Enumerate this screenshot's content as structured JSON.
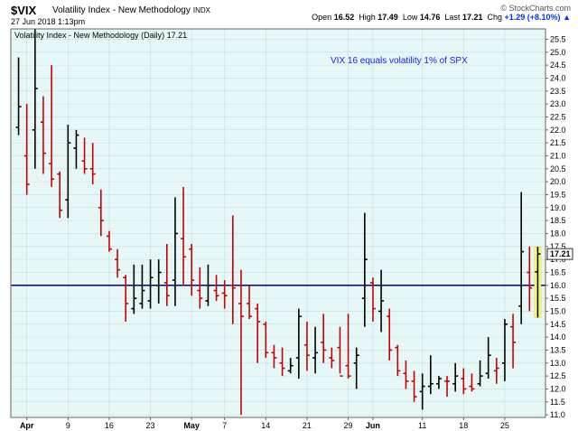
{
  "header": {
    "symbol": "$VIX",
    "name": "Volatility Index - New Methodology",
    "exchange": "INDX",
    "date": "27 Jun 2018 1:13pm",
    "copyright": "© StockCharts.com",
    "open_label": "Open",
    "open": "16.52",
    "high_label": "High",
    "high": "17.49",
    "low_label": "Low",
    "low": "14.76",
    "last_label": "Last",
    "last": "17.21",
    "chg_label": "Chg",
    "chg": "+1.29 (+8.10%)",
    "chg_arrow": "▲"
  },
  "colors": {
    "plot_bg": "#e6f7f7",
    "up": "#000000",
    "down": "#cc0000",
    "hline": "#000080",
    "highlight": "#ffff66",
    "annotation": "#1a1aff"
  },
  "chart_data": {
    "type": "ohlc",
    "legend": "Volatility Index - New Methodology (Daily) 17.21",
    "annotation": "VIX 16 equals volatility 1% of SPX",
    "last_label": "17.21",
    "hline": 16.0,
    "ylim": [
      10.9,
      25.9
    ],
    "y_ticks": [
      11.0,
      11.5,
      12.0,
      12.5,
      13.0,
      13.5,
      14.0,
      14.5,
      15.0,
      15.5,
      16.0,
      16.5,
      17.0,
      17.5,
      18.0,
      18.5,
      19.0,
      19.5,
      20.0,
      20.5,
      21.0,
      21.5,
      22.0,
      22.5,
      23.0,
      23.5,
      24.0,
      24.5,
      25.0,
      25.5
    ],
    "x_labels": [
      {
        "label": "Apr",
        "index": 1,
        "bold": true
      },
      {
        "label": "9",
        "index": 6,
        "bold": false
      },
      {
        "label": "16",
        "index": 11,
        "bold": false
      },
      {
        "label": "23",
        "index": 16,
        "bold": false
      },
      {
        "label": "May",
        "index": 21,
        "bold": true
      },
      {
        "label": "7",
        "index": 25,
        "bold": false
      },
      {
        "label": "14",
        "index": 30,
        "bold": false
      },
      {
        "label": "21",
        "index": 35,
        "bold": false
      },
      {
        "label": "29",
        "index": 40,
        "bold": false
      },
      {
        "label": "Jun",
        "index": 43,
        "bold": true
      },
      {
        "label": "11",
        "index": 49,
        "bold": false
      },
      {
        "label": "18",
        "index": 54,
        "bold": false
      },
      {
        "label": "25",
        "index": 59,
        "bold": false
      }
    ],
    "bars": [
      {
        "o": 22.1,
        "h": 24.8,
        "l": 21.8,
        "c": 22.9,
        "up": true
      },
      {
        "o": 21.0,
        "h": 23.0,
        "l": 19.5,
        "c": 19.9,
        "up": false
      },
      {
        "o": 22.0,
        "h": 25.9,
        "l": 20.5,
        "c": 23.6,
        "up": true
      },
      {
        "o": 22.3,
        "h": 23.3,
        "l": 20.3,
        "c": 21.1,
        "up": false
      },
      {
        "o": 20.7,
        "h": 24.5,
        "l": 19.8,
        "c": 20.1,
        "up": false
      },
      {
        "o": 20.3,
        "h": 20.4,
        "l": 18.6,
        "c": 18.9,
        "up": false
      },
      {
        "o": 19.3,
        "h": 22.2,
        "l": 18.6,
        "c": 21.5,
        "up": true
      },
      {
        "o": 21.3,
        "h": 22.0,
        "l": 20.5,
        "c": 21.8,
        "up": true
      },
      {
        "o": 20.8,
        "h": 21.7,
        "l": 20.3,
        "c": 20.5,
        "up": false
      },
      {
        "o": 20.5,
        "h": 21.5,
        "l": 19.9,
        "c": 20.3,
        "up": false
      },
      {
        "o": 19.0,
        "h": 19.7,
        "l": 17.9,
        "c": 18.5,
        "up": false
      },
      {
        "o": 17.9,
        "h": 18.1,
        "l": 17.3,
        "c": 17.4,
        "up": false
      },
      {
        "o": 17.0,
        "h": 17.4,
        "l": 16.3,
        "c": 16.6,
        "up": false
      },
      {
        "o": 16.3,
        "h": 16.4,
        "l": 14.6,
        "c": 15.3,
        "up": false
      },
      {
        "o": 15.1,
        "h": 16.8,
        "l": 14.9,
        "c": 15.5,
        "up": true
      },
      {
        "o": 15.3,
        "h": 16.8,
        "l": 15.1,
        "c": 15.8,
        "up": true
      },
      {
        "o": 15.4,
        "h": 17.0,
        "l": 15.1,
        "c": 16.3,
        "up": true
      },
      {
        "o": 16.0,
        "h": 17.0,
        "l": 15.3,
        "c": 16.5,
        "up": true
      },
      {
        "o": 16.1,
        "h": 17.6,
        "l": 15.2,
        "c": 15.6,
        "up": false
      },
      {
        "o": 16.2,
        "h": 19.4,
        "l": 15.2,
        "c": 18.0,
        "up": true
      },
      {
        "o": 17.8,
        "h": 19.8,
        "l": 16.0,
        "c": 17.1,
        "up": false
      },
      {
        "o": 17.4,
        "h": 17.6,
        "l": 15.6,
        "c": 16.2,
        "up": false
      },
      {
        "o": 15.8,
        "h": 16.7,
        "l": 15.1,
        "c": 15.5,
        "up": false
      },
      {
        "o": 15.4,
        "h": 16.8,
        "l": 15.2,
        "c": 16.0,
        "up": true
      },
      {
        "o": 15.8,
        "h": 16.4,
        "l": 15.4,
        "c": 15.6,
        "up": false
      },
      {
        "o": 15.7,
        "h": 16.2,
        "l": 15.1,
        "c": 15.6,
        "up": false
      },
      {
        "o": 16.0,
        "h": 18.7,
        "l": 14.5,
        "c": 15.9,
        "up": false
      },
      {
        "o": 15.3,
        "h": 16.6,
        "l": 11.0,
        "c": 14.8,
        "up": false
      },
      {
        "o": 15.3,
        "h": 16.0,
        "l": 14.7,
        "c": 14.8,
        "up": false
      },
      {
        "o": 15.1,
        "h": 15.3,
        "l": 13.0,
        "c": 14.6,
        "up": false
      },
      {
        "o": 14.5,
        "h": 14.6,
        "l": 13.2,
        "c": 13.4,
        "up": false
      },
      {
        "o": 13.4,
        "h": 13.7,
        "l": 12.8,
        "c": 13.2,
        "up": false
      },
      {
        "o": 13.0,
        "h": 13.6,
        "l": 12.5,
        "c": 12.8,
        "up": false
      },
      {
        "o": 12.7,
        "h": 13.2,
        "l": 12.6,
        "c": 12.9,
        "up": true
      },
      {
        "o": 13.2,
        "h": 15.1,
        "l": 12.4,
        "c": 14.8,
        "up": true
      },
      {
        "o": 13.7,
        "h": 14.6,
        "l": 12.7,
        "c": 13.3,
        "up": false
      },
      {
        "o": 13.2,
        "h": 14.4,
        "l": 12.6,
        "c": 13.4,
        "up": true
      },
      {
        "o": 13.8,
        "h": 14.9,
        "l": 13.0,
        "c": 13.5,
        "up": false
      },
      {
        "o": 13.2,
        "h": 13.6,
        "l": 12.8,
        "c": 13.1,
        "up": false
      },
      {
        "o": 13.6,
        "h": 14.4,
        "l": 12.6,
        "c": 12.5,
        "up": false
      },
      {
        "o": 12.9,
        "h": 14.9,
        "l": 12.4,
        "c": 12.5,
        "up": false
      },
      {
        "o": 13.0,
        "h": 13.6,
        "l": 12.0,
        "c": 13.3,
        "up": true
      },
      {
        "o": 15.5,
        "h": 18.8,
        "l": 14.4,
        "c": 17.0,
        "up": true
      },
      {
        "o": 16.1,
        "h": 16.3,
        "l": 14.6,
        "c": 15.1,
        "up": false
      },
      {
        "o": 15.0,
        "h": 16.6,
        "l": 14.2,
        "c": 15.4,
        "up": true
      },
      {
        "o": 14.8,
        "h": 15.1,
        "l": 13.1,
        "c": 13.5,
        "up": false
      },
      {
        "o": 13.6,
        "h": 13.7,
        "l": 12.5,
        "c": 12.7,
        "up": false
      },
      {
        "o": 12.6,
        "h": 13.1,
        "l": 12.0,
        "c": 12.3,
        "up": false
      },
      {
        "o": 12.3,
        "h": 12.7,
        "l": 11.5,
        "c": 11.7,
        "up": false
      },
      {
        "o": 11.9,
        "h": 12.6,
        "l": 11.2,
        "c": 12.1,
        "up": true
      },
      {
        "o": 12.1,
        "h": 13.3,
        "l": 11.8,
        "c": 12.2,
        "up": true
      },
      {
        "o": 12.2,
        "h": 12.5,
        "l": 12.0,
        "c": 12.4,
        "up": true
      },
      {
        "o": 12.3,
        "h": 12.5,
        "l": 11.7,
        "c": 12.3,
        "up": false
      },
      {
        "o": 12.2,
        "h": 13.0,
        "l": 11.9,
        "c": 12.5,
        "up": true
      },
      {
        "o": 12.4,
        "h": 12.8,
        "l": 11.8,
        "c": 12.0,
        "up": false
      },
      {
        "o": 12.1,
        "h": 12.6,
        "l": 11.9,
        "c": 12.0,
        "up": false
      },
      {
        "o": 12.2,
        "h": 13.1,
        "l": 12.1,
        "c": 12.5,
        "up": true
      },
      {
        "o": 12.6,
        "h": 14.0,
        "l": 12.4,
        "c": 13.3,
        "up": true
      },
      {
        "o": 12.7,
        "h": 13.2,
        "l": 12.2,
        "c": 12.8,
        "up": false
      },
      {
        "o": 13.0,
        "h": 14.7,
        "l": 12.3,
        "c": 14.5,
        "up": true
      },
      {
        "o": 14.4,
        "h": 14.9,
        "l": 12.8,
        "c": 13.8,
        "up": false
      },
      {
        "o": 15.2,
        "h": 19.6,
        "l": 14.5,
        "c": 17.3,
        "up": true
      },
      {
        "o": 16.5,
        "h": 17.5,
        "l": 15.0,
        "c": 15.9,
        "up": false
      },
      {
        "o": 16.52,
        "h": 17.49,
        "l": 14.76,
        "c": 17.21,
        "up": true
      }
    ]
  }
}
